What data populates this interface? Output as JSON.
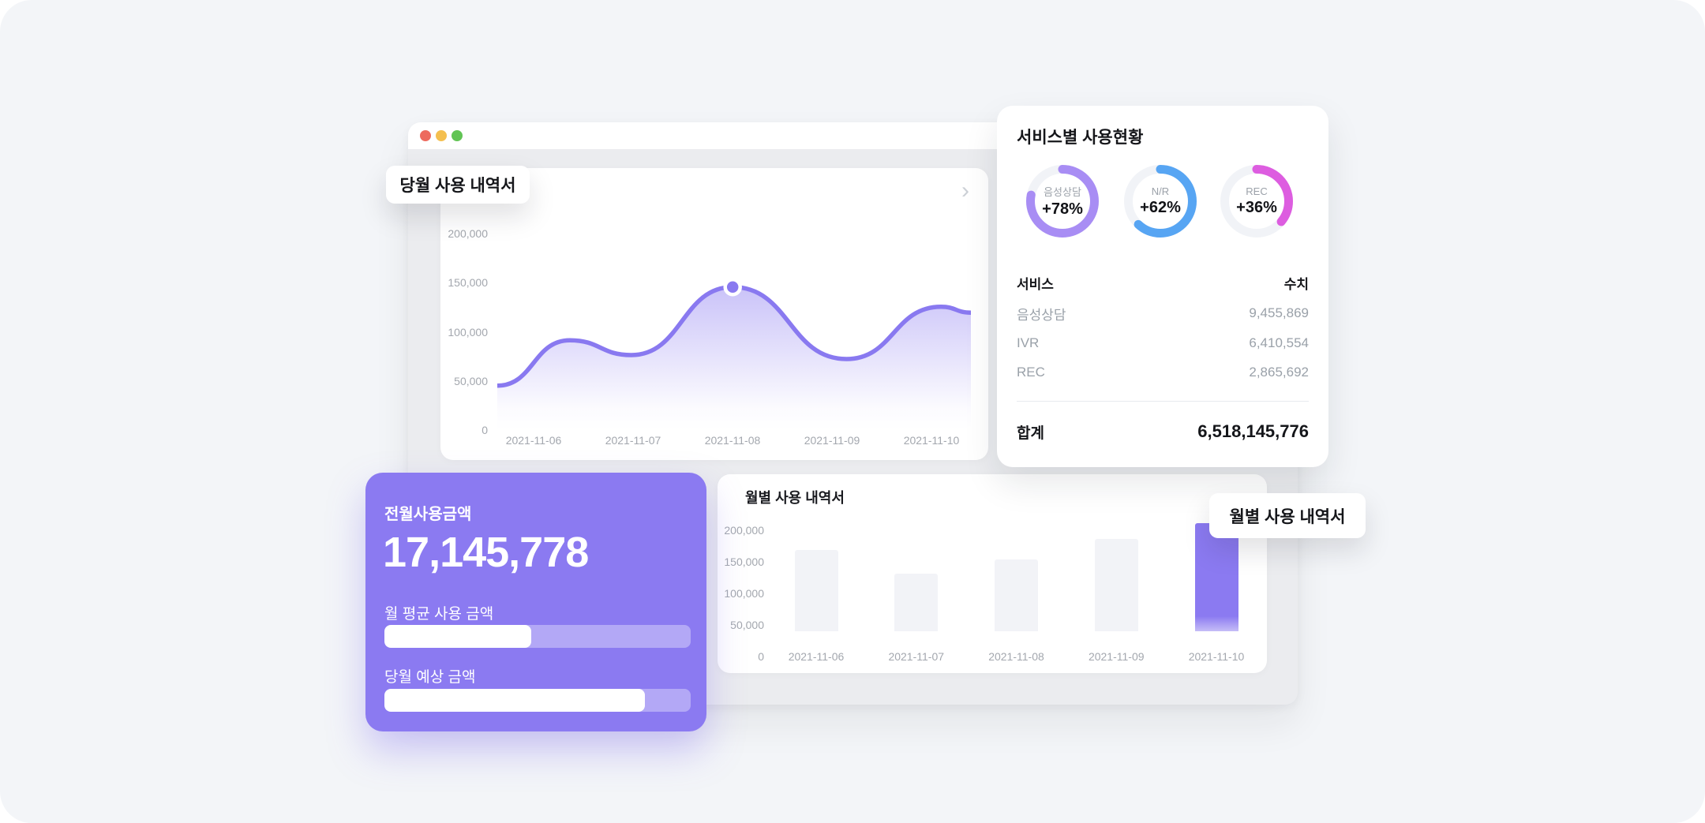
{
  "page": {
    "background": "#f3f5f8"
  },
  "window": {
    "traffic_lights": [
      {
        "name": "close",
        "color": "#ed6a5e"
      },
      {
        "name": "minimize",
        "color": "#f4bf4f"
      },
      {
        "name": "maximize",
        "color": "#61c454"
      }
    ],
    "chevron": "›"
  },
  "floating_labels": {
    "current_month": "당월 사용 내역서",
    "monthly": "월별 사용 내역서"
  },
  "service_panel": {
    "title": "서비스별 사용현황",
    "donuts": [
      {
        "label": "음성상담",
        "pct_label": "+78%",
        "pct": 78,
        "color": "#a88df4"
      },
      {
        "label": "N/R",
        "pct_label": "+62%",
        "pct": 62,
        "color": "#57a5f3"
      },
      {
        "label": "REC",
        "pct_label": "+36%",
        "pct": 36,
        "color": "#dd5de0"
      }
    ],
    "table": {
      "col_service": "서비스",
      "col_value": "수치",
      "rows": [
        {
          "service": "음성상담",
          "value": "9,455,869"
        },
        {
          "service": "IVR",
          "value": "6,410,554"
        },
        {
          "service": "REC",
          "value": "2,865,692"
        }
      ],
      "total_label": "합계",
      "total_value": "6,518,145,776"
    }
  },
  "summary_card": {
    "title": "전월사용금액",
    "amount": "17,145,778",
    "progress": [
      {
        "label": "월 평균 사용 금액",
        "pct": 48
      },
      {
        "label": "당월 예상 금액",
        "pct": 85
      }
    ]
  },
  "chart_data": [
    {
      "type": "area",
      "title": "당월 사용 내역서",
      "x_labels": [
        "2021-11-06",
        "2021-11-07",
        "2021-11-08",
        "2021-11-09",
        "2021-11-10"
      ],
      "ytick_labels": [
        "200,000",
        "150,000",
        "100,000",
        "50,000",
        "0"
      ],
      "ylim": [
        0,
        200000
      ],
      "line_color": "#8979f0",
      "points": [
        [
          0,
          45000
        ],
        [
          0.153,
          91000
        ],
        [
          0.283,
          76000
        ],
        [
          0.497,
          145000
        ],
        [
          0.737,
          72000
        ],
        [
          0.937,
          125000
        ],
        [
          1,
          119000
        ]
      ],
      "marker_index": 3,
      "grid": false,
      "legend": false
    },
    {
      "type": "bar",
      "title": "월별 사용 내역서",
      "categories": [
        "2021-11-06",
        "2021-11-07",
        "2021-11-08",
        "2021-11-09",
        "2021-11-10"
      ],
      "values": [
        165000,
        127000,
        150000,
        183000,
        207000
      ],
      "ytick_labels": [
        "200,000",
        "150,000",
        "100,000",
        "50,000",
        "0"
      ],
      "ylim": [
        0,
        200000
      ],
      "bar_color": "#f2f3f7",
      "highlight": "2021-11-10",
      "highlight_color": "#8b7af1",
      "grid": false,
      "legend": false
    }
  ]
}
